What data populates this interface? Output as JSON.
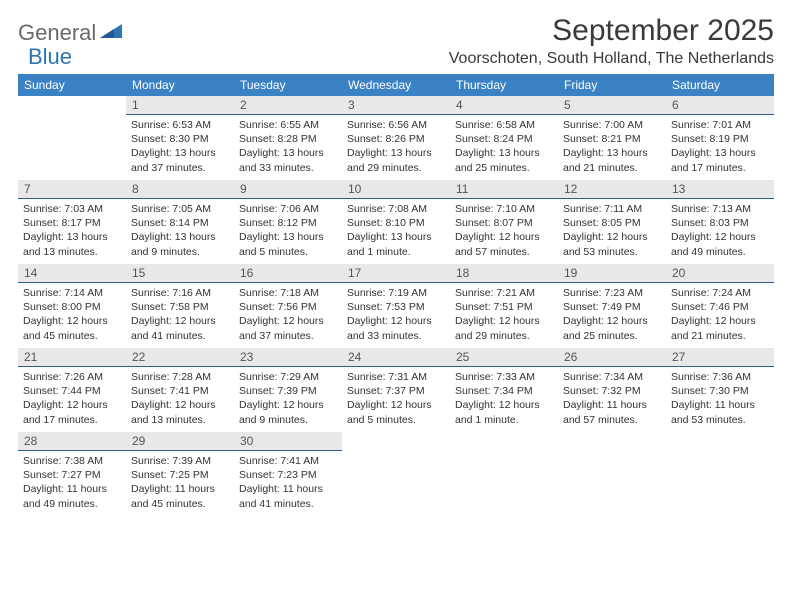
{
  "logo": {
    "part1": "General",
    "part2": "Blue"
  },
  "title": "September 2025",
  "location": "Voorschoten, South Holland, The Netherlands",
  "colors": {
    "header_bg": "#3a82c4",
    "header_text": "#ffffff",
    "daynum_bg": "#e8e8e8",
    "daynum_border": "#2f5e8e",
    "logo_gray": "#6a6a6a",
    "logo_blue": "#2f74b5"
  },
  "weekdays": [
    "Sunday",
    "Monday",
    "Tuesday",
    "Wednesday",
    "Thursday",
    "Friday",
    "Saturday"
  ],
  "weeks": [
    [
      null,
      {
        "n": "1",
        "sr": "6:53 AM",
        "ss": "8:30 PM",
        "dl": "13 hours and 37 minutes."
      },
      {
        "n": "2",
        "sr": "6:55 AM",
        "ss": "8:28 PM",
        "dl": "13 hours and 33 minutes."
      },
      {
        "n": "3",
        "sr": "6:56 AM",
        "ss": "8:26 PM",
        "dl": "13 hours and 29 minutes."
      },
      {
        "n": "4",
        "sr": "6:58 AM",
        "ss": "8:24 PM",
        "dl": "13 hours and 25 minutes."
      },
      {
        "n": "5",
        "sr": "7:00 AM",
        "ss": "8:21 PM",
        "dl": "13 hours and 21 minutes."
      },
      {
        "n": "6",
        "sr": "7:01 AM",
        "ss": "8:19 PM",
        "dl": "13 hours and 17 minutes."
      }
    ],
    [
      {
        "n": "7",
        "sr": "7:03 AM",
        "ss": "8:17 PM",
        "dl": "13 hours and 13 minutes."
      },
      {
        "n": "8",
        "sr": "7:05 AM",
        "ss": "8:14 PM",
        "dl": "13 hours and 9 minutes."
      },
      {
        "n": "9",
        "sr": "7:06 AM",
        "ss": "8:12 PM",
        "dl": "13 hours and 5 minutes."
      },
      {
        "n": "10",
        "sr": "7:08 AM",
        "ss": "8:10 PM",
        "dl": "13 hours and 1 minute."
      },
      {
        "n": "11",
        "sr": "7:10 AM",
        "ss": "8:07 PM",
        "dl": "12 hours and 57 minutes."
      },
      {
        "n": "12",
        "sr": "7:11 AM",
        "ss": "8:05 PM",
        "dl": "12 hours and 53 minutes."
      },
      {
        "n": "13",
        "sr": "7:13 AM",
        "ss": "8:03 PM",
        "dl": "12 hours and 49 minutes."
      }
    ],
    [
      {
        "n": "14",
        "sr": "7:14 AM",
        "ss": "8:00 PM",
        "dl": "12 hours and 45 minutes."
      },
      {
        "n": "15",
        "sr": "7:16 AM",
        "ss": "7:58 PM",
        "dl": "12 hours and 41 minutes."
      },
      {
        "n": "16",
        "sr": "7:18 AM",
        "ss": "7:56 PM",
        "dl": "12 hours and 37 minutes."
      },
      {
        "n": "17",
        "sr": "7:19 AM",
        "ss": "7:53 PM",
        "dl": "12 hours and 33 minutes."
      },
      {
        "n": "18",
        "sr": "7:21 AM",
        "ss": "7:51 PM",
        "dl": "12 hours and 29 minutes."
      },
      {
        "n": "19",
        "sr": "7:23 AM",
        "ss": "7:49 PM",
        "dl": "12 hours and 25 minutes."
      },
      {
        "n": "20",
        "sr": "7:24 AM",
        "ss": "7:46 PM",
        "dl": "12 hours and 21 minutes."
      }
    ],
    [
      {
        "n": "21",
        "sr": "7:26 AM",
        "ss": "7:44 PM",
        "dl": "12 hours and 17 minutes."
      },
      {
        "n": "22",
        "sr": "7:28 AM",
        "ss": "7:41 PM",
        "dl": "12 hours and 13 minutes."
      },
      {
        "n": "23",
        "sr": "7:29 AM",
        "ss": "7:39 PM",
        "dl": "12 hours and 9 minutes."
      },
      {
        "n": "24",
        "sr": "7:31 AM",
        "ss": "7:37 PM",
        "dl": "12 hours and 5 minutes."
      },
      {
        "n": "25",
        "sr": "7:33 AM",
        "ss": "7:34 PM",
        "dl": "12 hours and 1 minute."
      },
      {
        "n": "26",
        "sr": "7:34 AM",
        "ss": "7:32 PM",
        "dl": "11 hours and 57 minutes."
      },
      {
        "n": "27",
        "sr": "7:36 AM",
        "ss": "7:30 PM",
        "dl": "11 hours and 53 minutes."
      }
    ],
    [
      {
        "n": "28",
        "sr": "7:38 AM",
        "ss": "7:27 PM",
        "dl": "11 hours and 49 minutes."
      },
      {
        "n": "29",
        "sr": "7:39 AM",
        "ss": "7:25 PM",
        "dl": "11 hours and 45 minutes."
      },
      {
        "n": "30",
        "sr": "7:41 AM",
        "ss": "7:23 PM",
        "dl": "11 hours and 41 minutes."
      },
      null,
      null,
      null,
      null
    ]
  ],
  "labels": {
    "sunrise": "Sunrise:",
    "sunset": "Sunset:",
    "daylight": "Daylight:"
  }
}
